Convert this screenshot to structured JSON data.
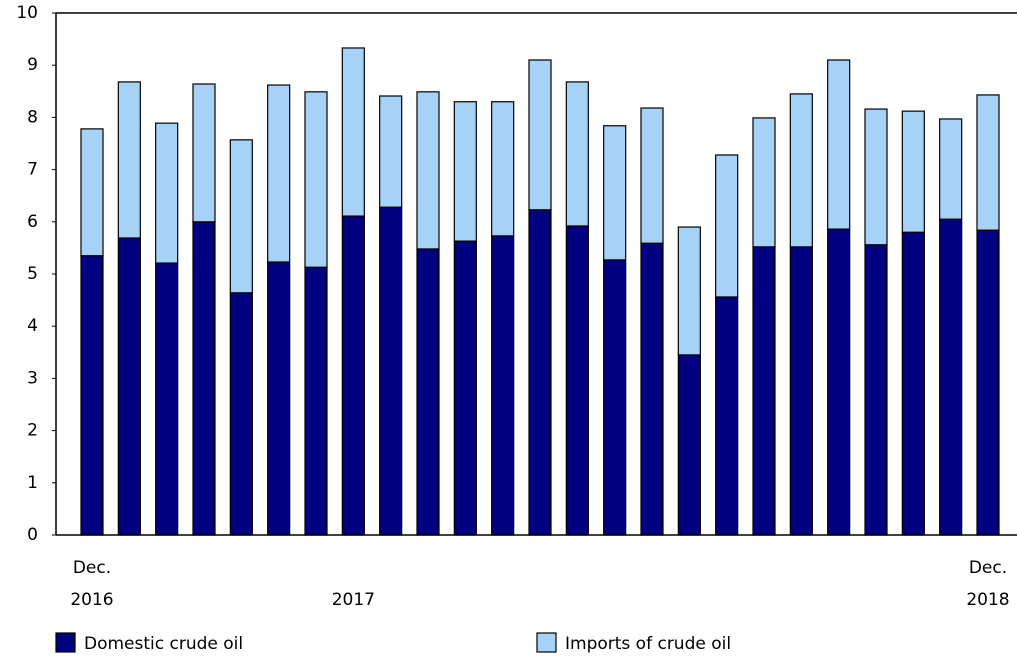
{
  "chart_data": {
    "type": "stacked_bar",
    "categories": [
      "Dec. 2016",
      null,
      null,
      null,
      null,
      null,
      null,
      "2017",
      null,
      null,
      null,
      null,
      null,
      null,
      null,
      null,
      null,
      null,
      null,
      null,
      null,
      null,
      null,
      null,
      "Dec. 2018"
    ],
    "series": [
      {
        "name": "Domestic crude oil",
        "color": "#000080",
        "values": [
          5.35,
          5.69,
          5.21,
          6.0,
          4.64,
          5.23,
          5.13,
          6.11,
          6.28,
          5.48,
          5.63,
          5.73,
          6.23,
          5.92,
          5.27,
          5.59,
          3.45,
          4.56,
          5.52,
          5.52,
          5.86,
          5.56,
          5.8,
          6.05,
          5.84
        ]
      },
      {
        "name": "Imports of crude oil",
        "color": "#a6d2f7",
        "values": [
          2.43,
          2.99,
          2.68,
          2.64,
          2.93,
          3.39,
          3.36,
          3.22,
          2.13,
          3.01,
          2.67,
          2.57,
          2.87,
          2.76,
          2.57,
          2.59,
          2.45,
          2.72,
          2.47,
          2.93,
          3.24,
          2.6,
          2.32,
          1.92,
          2.59
        ]
      }
    ],
    "ylim": [
      0,
      10
    ],
    "yticks": [
      0,
      1,
      2,
      3,
      4,
      5,
      6,
      7,
      8,
      9,
      10
    ],
    "grid": false
  }
}
